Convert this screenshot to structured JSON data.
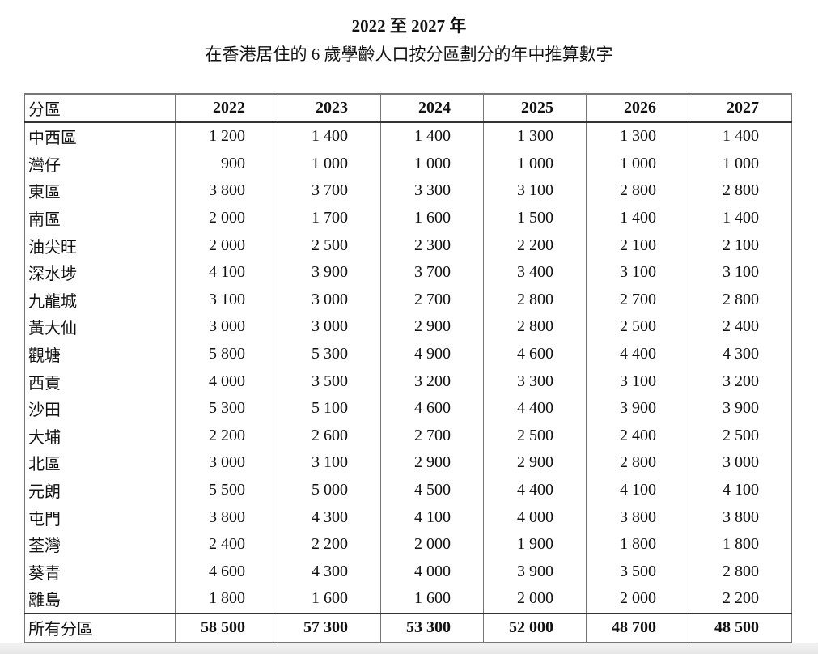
{
  "title": {
    "line1": "2022 至 2027 年",
    "line2": "在香港居住的 6 歲學齡人口按分區劃分的年中推算數字"
  },
  "table": {
    "headers": [
      "分區",
      "2022",
      "2023",
      "2024",
      "2025",
      "2026",
      "2027"
    ],
    "rows": [
      [
        "中西區",
        "1 200",
        "1 400",
        "1 400",
        "1 300",
        "1 300",
        "1 400"
      ],
      [
        "灣仔",
        "900",
        "1 000",
        "1 000",
        "1 000",
        "1 000",
        "1 000"
      ],
      [
        "東區",
        "3 800",
        "3 700",
        "3 300",
        "3 100",
        "2 800",
        "2 800"
      ],
      [
        "南區",
        "2 000",
        "1 700",
        "1 600",
        "1 500",
        "1 400",
        "1 400"
      ],
      [
        "油尖旺",
        "2 000",
        "2 500",
        "2 300",
        "2 200",
        "2 100",
        "2 100"
      ],
      [
        "深水埗",
        "4 100",
        "3 900",
        "3 700",
        "3 400",
        "3 100",
        "3 100"
      ],
      [
        "九龍城",
        "3 100",
        "3 000",
        "2 700",
        "2 800",
        "2 700",
        "2 800"
      ],
      [
        "黃大仙",
        "3 000",
        "3 000",
        "2 900",
        "2 800",
        "2 500",
        "2 400"
      ],
      [
        "觀塘",
        "5 800",
        "5 300",
        "4 900",
        "4 600",
        "4 400",
        "4 300"
      ],
      [
        "西貢",
        "4 000",
        "3 500",
        "3 200",
        "3 300",
        "3 100",
        "3 200"
      ],
      [
        "沙田",
        "5 300",
        "5 100",
        "4 600",
        "4 400",
        "3 900",
        "3 900"
      ],
      [
        "大埔",
        "2 200",
        "2 600",
        "2 700",
        "2 500",
        "2 400",
        "2 500"
      ],
      [
        "北區",
        "3 000",
        "3 100",
        "2 900",
        "2 900",
        "2 800",
        "3 000"
      ],
      [
        "元朗",
        "5 500",
        "5 000",
        "4 500",
        "4 400",
        "4 100",
        "4 100"
      ],
      [
        "屯門",
        "3 800",
        "4 300",
        "4 100",
        "4 000",
        "3 800",
        "3 800"
      ],
      [
        "荃灣",
        "2 400",
        "2 200",
        "2 000",
        "1 900",
        "1 800",
        "1 800"
      ],
      [
        "葵青",
        "4 600",
        "4 300",
        "4 000",
        "3 900",
        "3 500",
        "2 800"
      ],
      [
        "離島",
        "1 800",
        "1 600",
        "1 600",
        "2 000",
        "2 000",
        "2 200"
      ]
    ],
    "total": [
      "所有分區",
      "58 500",
      "57 300",
      "53 300",
      "52 000",
      "48 700",
      "48 500"
    ]
  }
}
